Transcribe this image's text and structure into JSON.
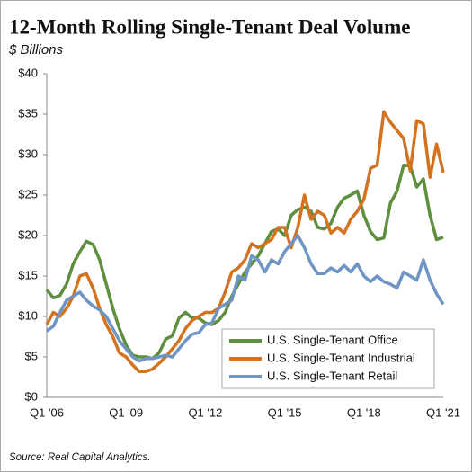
{
  "chart_data": {
    "type": "line",
    "title": "12-Month Rolling Single-Tenant Deal Volume",
    "subtitle": "$ Billions",
    "source": "Source: Real Capital Analytics.",
    "categories": [
      "Q1 '06",
      null,
      null,
      null,
      null,
      null,
      null,
      null,
      null,
      null,
      null,
      null,
      "Q1 '09",
      null,
      null,
      null,
      null,
      null,
      null,
      null,
      null,
      null,
      null,
      null,
      "Q1 '12",
      null,
      null,
      null,
      null,
      null,
      null,
      null,
      null,
      null,
      null,
      null,
      "Q1 '15",
      null,
      null,
      null,
      null,
      null,
      null,
      null,
      null,
      null,
      null,
      null,
      "Q1 '18",
      null,
      null,
      null,
      null,
      null,
      null,
      null,
      null,
      null,
      null,
      null,
      "Q1 '21"
    ],
    "ylim": [
      0,
      40
    ],
    "yticks": [
      {
        "value": 0,
        "label": "$0"
      },
      {
        "value": 5,
        "label": "$5"
      },
      {
        "value": 10,
        "label": "$10"
      },
      {
        "value": 15,
        "label": "$15"
      },
      {
        "value": 20,
        "label": "$20"
      },
      {
        "value": 25,
        "label": "$25"
      },
      {
        "value": 30,
        "label": "$30"
      },
      {
        "value": 35,
        "label": "$35"
      },
      {
        "value": 40,
        "label": "$40"
      }
    ],
    "legend": "lower-right",
    "series": [
      {
        "name": "U.S. Single-Tenant Office",
        "color": "#5e8f3e",
        "values": [
          13.3,
          12.3,
          12.6,
          14.0,
          16.5,
          18.0,
          19.3,
          18.9,
          17.0,
          14.0,
          11.0,
          8.5,
          6.5,
          5.2,
          5.0,
          5.0,
          4.8,
          5.5,
          7.2,
          7.6,
          9.8,
          10.5,
          9.8,
          9.8,
          9.2,
          9.0,
          9.5,
          10.5,
          12.5,
          14.0,
          15.5,
          16.5,
          17.5,
          19.0,
          20.5,
          20.8,
          20.0,
          22.5,
          23.2,
          23.5,
          23.0,
          21.0,
          20.8,
          21.5,
          23.5,
          24.6,
          25.0,
          25.5,
          22.5,
          20.5,
          19.5,
          19.7,
          24.0,
          25.5,
          28.7,
          28.6,
          26.0,
          27.0,
          22.5,
          19.5,
          19.8
        ]
      },
      {
        "name": "U.S. Single-Tenant Industrial",
        "color": "#d4731f",
        "values": [
          9.0,
          10.5,
          10.0,
          11.0,
          12.5,
          15.0,
          15.3,
          13.5,
          11.0,
          9.0,
          7.5,
          5.5,
          5.0,
          4.0,
          3.2,
          3.2,
          3.5,
          4.2,
          5.0,
          6.0,
          7.0,
          8.5,
          9.5,
          10.0,
          10.5,
          10.5,
          11.0,
          13.0,
          15.5,
          16.0,
          17.0,
          19.0,
          18.5,
          19.0,
          19.5,
          21.0,
          21.0,
          18.5,
          21.0,
          25.0,
          22.0,
          23.0,
          22.5,
          20.3,
          21.0,
          20.3,
          22.0,
          23.0,
          24.5,
          28.3,
          28.7,
          35.3,
          34.0,
          33.0,
          32.0,
          28.0,
          34.2,
          33.8,
          27.2,
          31.3,
          27.8
        ]
      },
      {
        "name": "U.S. Single-Tenant Retail",
        "color": "#6f95c4",
        "values": [
          8.2,
          8.8,
          10.5,
          12.0,
          12.5,
          13.0,
          12.0,
          11.3,
          10.8,
          10.0,
          8.5,
          7.0,
          6.0,
          5.0,
          4.5,
          4.8,
          4.8,
          5.0,
          5.2,
          5.0,
          6.0,
          7.0,
          7.8,
          8.0,
          9.0,
          9.2,
          11.0,
          11.5,
          12.0,
          15.0,
          14.5,
          17.5,
          17.0,
          15.5,
          17.0,
          16.5,
          18.0,
          19.0,
          20.0,
          18.5,
          16.5,
          15.3,
          15.3,
          16.0,
          15.5,
          16.3,
          15.5,
          16.5,
          15.0,
          14.3,
          15.0,
          14.3,
          14.0,
          13.5,
          15.5,
          15.0,
          14.5,
          17.0,
          14.5,
          12.8,
          11.5
        ]
      }
    ]
  }
}
